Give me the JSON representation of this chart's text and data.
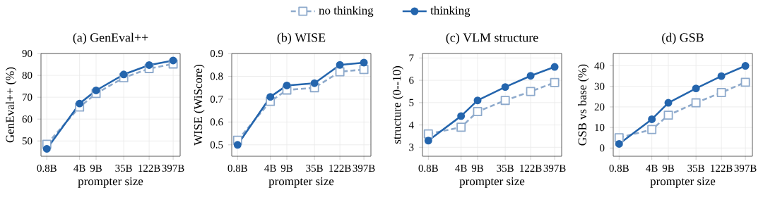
{
  "chart_data": [
    {
      "type": "line",
      "title": "(a) GenEval++",
      "xlabel": "prompter size",
      "ylabel": "GenEval++ (%)",
      "log": "x",
      "grid": true,
      "legend": "top",
      "x": [
        0.8,
        4,
        9,
        35,
        122,
        397
      ],
      "xlim": [
        0.6,
        560
      ],
      "xticks": [
        {
          "value": 0.8,
          "label": "0.8B"
        },
        {
          "value": 4,
          "label": "4B"
        },
        {
          "value": 9,
          "label": "9B"
        },
        {
          "value": 35,
          "label": "35B"
        },
        {
          "value": 122,
          "label": "122B"
        },
        {
          "value": 397,
          "label": "397B"
        }
      ],
      "ylim": [
        43,
        90
      ],
      "yticks": [
        50,
        60,
        70,
        80,
        90
      ],
      "series": [
        {
          "name": "no thinking",
          "color": "#8eaacc",
          "marker": "square",
          "line_style": "dashed",
          "values": [
            48.5,
            65.5,
            71.7,
            78.9,
            83.1,
            85.2
          ]
        },
        {
          "name": "thinking",
          "color": "#2465ad",
          "marker": "circle",
          "line_style": "solid",
          "values": [
            46.4,
            67.1,
            73.1,
            80.4,
            84.7,
            86.8
          ]
        }
      ]
    },
    {
      "type": "line",
      "title": "(b) WISE",
      "xlabel": "prompter size",
      "ylabel": "WISE (WiScore)",
      "log": "x",
      "grid": true,
      "x": [
        0.8,
        4,
        9,
        35,
        122,
        397
      ],
      "xlim": [
        0.6,
        560
      ],
      "xticks": [
        {
          "value": 0.8,
          "label": "0.8B"
        },
        {
          "value": 4,
          "label": "4B"
        },
        {
          "value": 9,
          "label": "9B"
        },
        {
          "value": 35,
          "label": "35B"
        },
        {
          "value": 122,
          "label": "122B"
        },
        {
          "value": 397,
          "label": "397B"
        }
      ],
      "ylim": [
        0.45,
        0.9
      ],
      "yticks": [
        0.5,
        0.6,
        0.7,
        0.8,
        0.9
      ],
      "series": [
        {
          "color": "#8eaacc",
          "marker": "square",
          "line_style": "dashed",
          "values": [
            0.52,
            0.69,
            0.74,
            0.75,
            0.82,
            0.83
          ]
        },
        {
          "color": "#2465ad",
          "marker": "circle",
          "line_style": "solid",
          "values": [
            0.5,
            0.71,
            0.76,
            0.77,
            0.85,
            0.86
          ]
        }
      ]
    },
    {
      "type": "line",
      "title": "(c) VLM structure",
      "xlabel": "prompter size",
      "ylabel": "structure (0--10)",
      "log": "x",
      "grid": true,
      "x": [
        0.8,
        4,
        9,
        35,
        122,
        397
      ],
      "xlim": [
        0.6,
        560
      ],
      "xticks": [
        {
          "value": 0.8,
          "label": "0.8B"
        },
        {
          "value": 4,
          "label": "4B"
        },
        {
          "value": 9,
          "label": "9B"
        },
        {
          "value": 35,
          "label": "35B"
        },
        {
          "value": 122,
          "label": "122B"
        },
        {
          "value": 397,
          "label": "397B"
        }
      ],
      "ylim": [
        2.6,
        7.2
      ],
      "yticks": [
        3,
        4,
        5,
        6,
        7
      ],
      "series": [
        {
          "color": "#8eaacc",
          "marker": "square",
          "line_style": "dashed",
          "values": [
            3.6,
            3.9,
            4.6,
            5.1,
            5.5,
            5.9
          ]
        },
        {
          "color": "#2465ad",
          "marker": "circle",
          "line_style": "solid",
          "values": [
            3.3,
            4.4,
            5.1,
            5.7,
            6.2,
            6.6
          ]
        }
      ]
    },
    {
      "type": "line",
      "title": "(d) GSB",
      "xlabel": "prompter size",
      "ylabel": "GSB vs base (%)",
      "log": "x",
      "grid": true,
      "x": [
        0.8,
        4,
        9,
        35,
        122,
        397
      ],
      "xlim": [
        0.6,
        560
      ],
      "xticks": [
        {
          "value": 0.8,
          "label": "0.8B"
        },
        {
          "value": 4,
          "label": "4B"
        },
        {
          "value": 9,
          "label": "9B"
        },
        {
          "value": 35,
          "label": "35B"
        },
        {
          "value": 122,
          "label": "122B"
        },
        {
          "value": 397,
          "label": "397B"
        }
      ],
      "ylim": [
        -4,
        46
      ],
      "yticks": [
        0,
        10,
        20,
        30,
        40
      ],
      "series": [
        {
          "color": "#8eaacc",
          "marker": "square",
          "line_style": "dashed",
          "values": [
            5,
            9,
            16,
            22,
            27,
            32
          ]
        },
        {
          "color": "#2465ad",
          "marker": "circle",
          "line_style": "solid",
          "values": [
            2,
            14,
            22,
            29,
            35,
            40
          ]
        }
      ]
    }
  ]
}
